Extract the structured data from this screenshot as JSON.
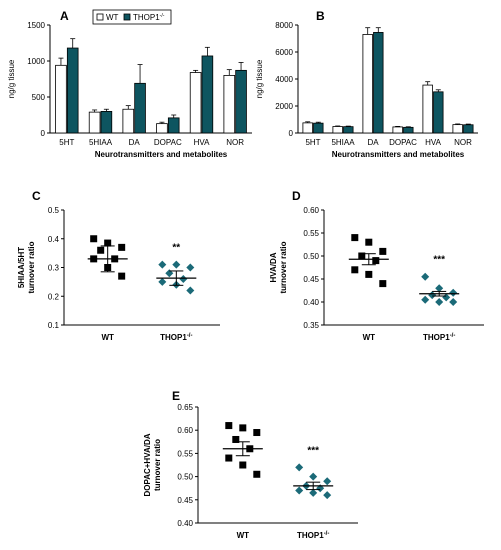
{
  "colors": {
    "wt_fill": "#ffffff",
    "ko_fill": "#0e5560",
    "wt_marker": "#000000",
    "ko_marker": "#1b6a78",
    "axis": "#000000"
  },
  "legend": {
    "wt": "WT",
    "ko": "THOP1",
    "ko_superscript": "-/-"
  },
  "chart_data": [
    {
      "panel": "A",
      "type": "bar",
      "categories": [
        "5HT",
        "5HIAA",
        "DA",
        "DOPAC",
        "HVA",
        "NOR"
      ],
      "series": [
        {
          "name": "WT",
          "values": [
            940,
            290,
            330,
            130,
            840,
            800
          ],
          "errors": [
            100,
            30,
            50,
            20,
            30,
            80
          ]
        },
        {
          "name": "THOP1-/-",
          "values": [
            1180,
            300,
            690,
            210,
            1070,
            870
          ],
          "errors": [
            130,
            30,
            260,
            40,
            120,
            110
          ]
        }
      ],
      "xlabel": "Neurotransmitters and metabolites",
      "ylabel": "ng/g tissue",
      "ylim": [
        0,
        1500
      ],
      "yticks": [
        "0",
        "500",
        "1000",
        "1500"
      ]
    },
    {
      "panel": "B",
      "type": "bar",
      "categories": [
        "5HT",
        "5HIAA",
        "DA",
        "DOPAC",
        "HVA",
        "NOR"
      ],
      "series": [
        {
          "name": "WT",
          "values": [
            750,
            480,
            7300,
            450,
            3550,
            620
          ],
          "errors": [
            80,
            40,
            500,
            40,
            250,
            50
          ]
        },
        {
          "name": "THOP1-/-",
          "values": [
            730,
            470,
            7450,
            420,
            3050,
            610
          ],
          "errors": [
            70,
            40,
            350,
            40,
            150,
            50
          ]
        }
      ],
      "xlabel": "Neurotransmitters and metabolites",
      "ylabel": "ng/g tissue",
      "ylim": [
        0,
        8000
      ],
      "yticks": [
        "0",
        "2000",
        "4000",
        "6000",
        "8000"
      ]
    },
    {
      "panel": "C",
      "type": "scatter",
      "groups": [
        "WT",
        "THOP1"
      ],
      "points": [
        [
          0.4,
          0.385,
          0.37,
          0.36,
          0.33,
          0.33,
          0.3,
          0.27
        ],
        [
          0.31,
          0.31,
          0.3,
          0.28,
          0.26,
          0.25,
          0.24,
          0.22
        ]
      ],
      "means": [
        0.33,
        0.263
      ],
      "sems": [
        0.045,
        0.025
      ],
      "annotation": "**",
      "ylabel": [
        "5HIAA/5HT",
        "turnover ratio"
      ],
      "ylim": [
        0.1,
        0.5
      ],
      "yticks": [
        "0.1",
        "0.2",
        "0.3",
        "0.4",
        "0.5"
      ]
    },
    {
      "panel": "D",
      "type": "scatter",
      "groups": [
        "WT",
        "THOP1"
      ],
      "points": [
        [
          0.54,
          0.53,
          0.51,
          0.5,
          0.49,
          0.47,
          0.46,
          0.44
        ],
        [
          0.455,
          0.43,
          0.42,
          0.415,
          0.41,
          0.405,
          0.4,
          0.4
        ]
      ],
      "means": [
        0.493,
        0.418
      ],
      "sems": [
        0.012,
        0.005
      ],
      "annotation": "***",
      "ylabel": [
        "HVA/DA",
        "turnover ratio"
      ],
      "ylim": [
        0.35,
        0.6
      ],
      "yticks": [
        "0.35",
        "0.40",
        "0.45",
        "0.50",
        "0.55",
        "0.60"
      ]
    },
    {
      "panel": "E",
      "type": "scatter",
      "groups": [
        "WT",
        "THOP1"
      ],
      "points": [
        [
          0.61,
          0.605,
          0.595,
          0.58,
          0.56,
          0.54,
          0.525,
          0.505
        ],
        [
          0.52,
          0.5,
          0.49,
          0.48,
          0.475,
          0.47,
          0.465,
          0.46
        ]
      ],
      "means": [
        0.56,
        0.48
      ],
      "sems": [
        0.015,
        0.008
      ],
      "annotation": "***",
      "ylabel": [
        "DOPAC+HVA/DA",
        "turnover ratio"
      ],
      "ylim": [
        0.4,
        0.65
      ],
      "yticks": [
        "0.40",
        "0.45",
        "0.50",
        "0.55",
        "0.60",
        "0.65"
      ]
    }
  ]
}
